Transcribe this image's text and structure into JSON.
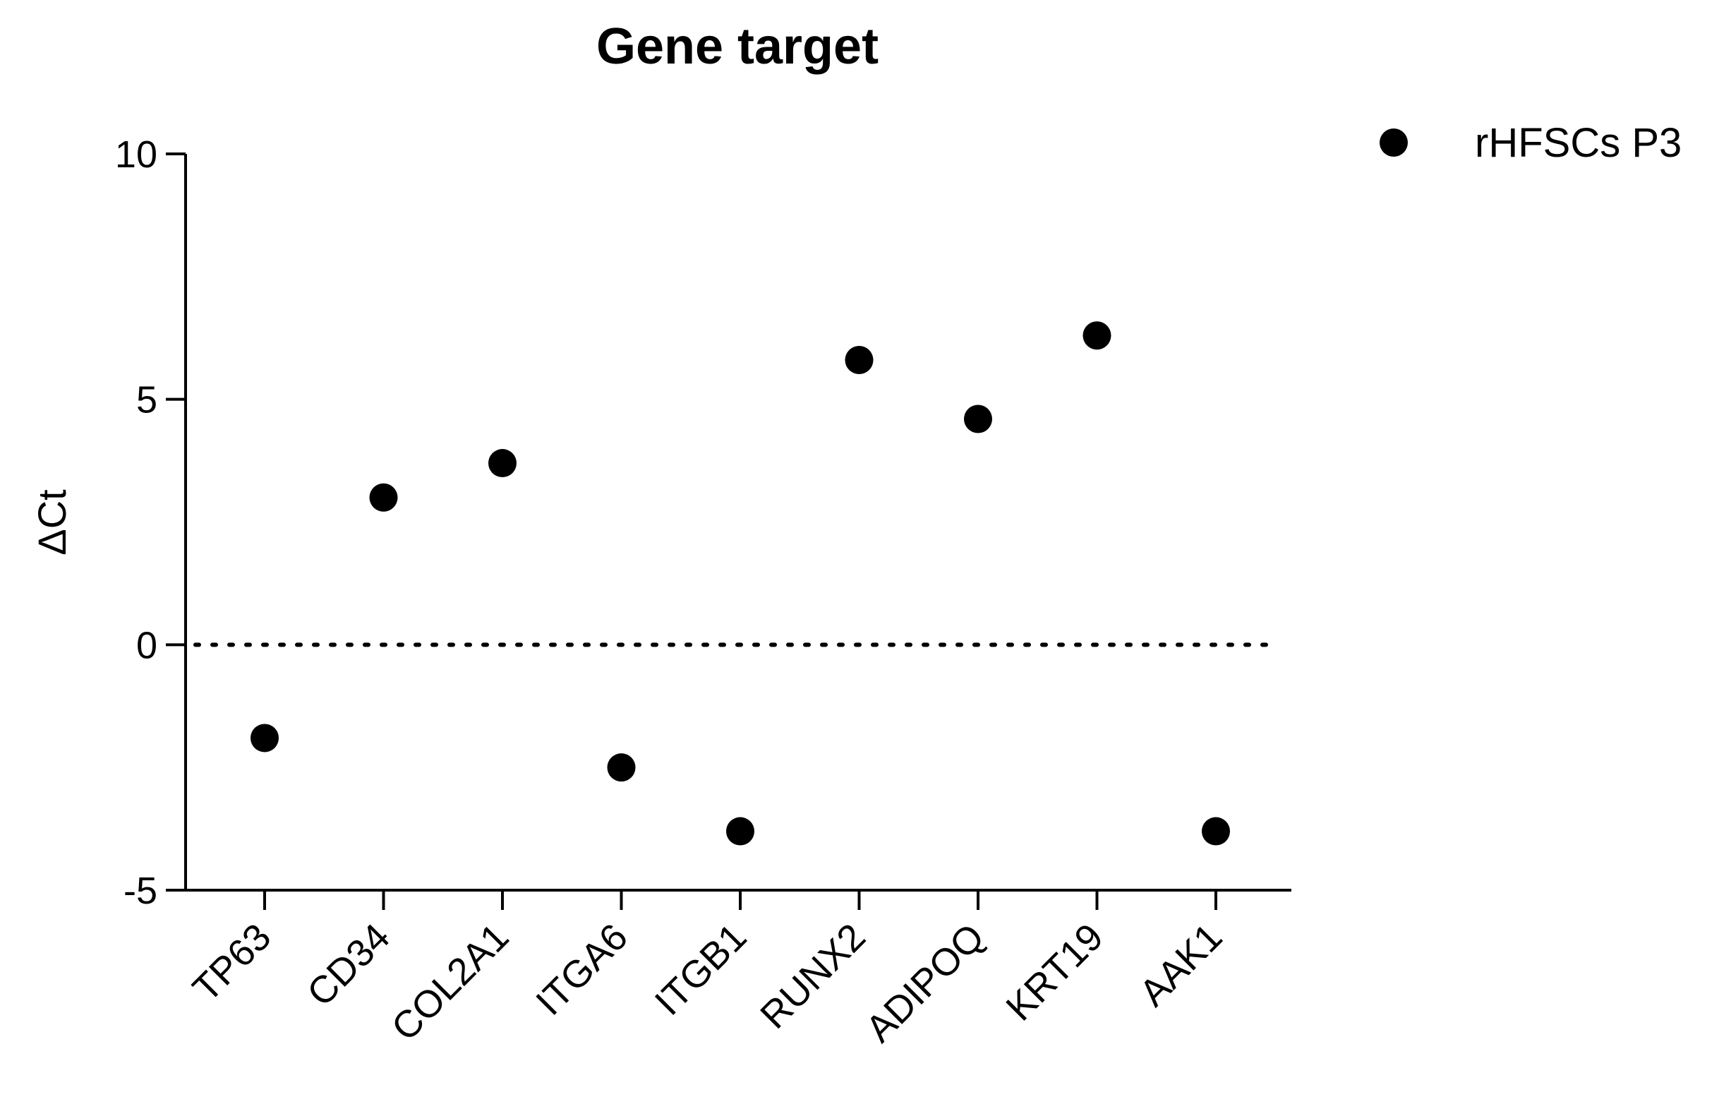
{
  "chart_data": {
    "type": "scatter",
    "title": "Gene target",
    "xlabel": "",
    "ylabel": "ΔCt",
    "categories": [
      "TP63",
      "CD34",
      "COL2A1",
      "ITGA6",
      "ITGB1",
      "RUNX2",
      "ADIPOQ",
      "KRT19",
      "AAK1"
    ],
    "series": [
      {
        "name": "rHFSCs P3",
        "values": [
          -1.9,
          3.0,
          3.7,
          -2.5,
          -3.8,
          5.8,
          4.6,
          6.3,
          -3.8
        ],
        "color": "#000000",
        "marker": "circle"
      }
    ],
    "ylim": [
      -5,
      10
    ],
    "yticks": [
      -5,
      0,
      5,
      10
    ],
    "ytick_labels": [
      "-5",
      "0",
      "5",
      "10"
    ],
    "reference_line": {
      "y": 0,
      "style": "dotted"
    },
    "grid": false,
    "legend": "top-right",
    "xtick_rotation": "45-degree"
  }
}
